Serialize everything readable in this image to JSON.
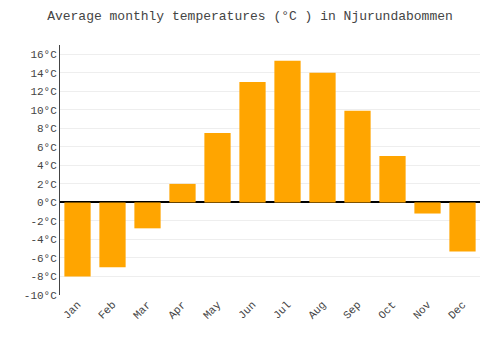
{
  "chart_data": {
    "type": "bar",
    "title": "Average monthly temperatures (°C ) in Njurundabommen",
    "categories": [
      "Jan",
      "Feb",
      "Mar",
      "Apr",
      "May",
      "Jun",
      "Jul",
      "Aug",
      "Sep",
      "Oct",
      "Nov",
      "Dec"
    ],
    "values": [
      -8.0,
      -7.0,
      -2.8,
      2.0,
      7.5,
      13.0,
      15.3,
      14.0,
      9.9,
      5.0,
      -1.2,
      -5.3
    ],
    "color": "#FFA500",
    "ylim": [
      -10,
      17
    ],
    "yticks": [
      {
        "value": -10,
        "label": "-10°C"
      },
      {
        "value": -8,
        "label": "-8°C"
      },
      {
        "value": -6,
        "label": "-6°C"
      },
      {
        "value": -4,
        "label": "-4°C"
      },
      {
        "value": -2,
        "label": "-2°C"
      },
      {
        "value": 0,
        "label": "0°C"
      },
      {
        "value": 2,
        "label": "2°C"
      },
      {
        "value": 4,
        "label": "4°C"
      },
      {
        "value": 6,
        "label": "6°C"
      },
      {
        "value": 8,
        "label": "8°C"
      },
      {
        "value": 10,
        "label": "10°C"
      },
      {
        "value": 12,
        "label": "12°C"
      },
      {
        "value": 14,
        "label": "14°C"
      },
      {
        "value": 16,
        "label": "16°C"
      }
    ],
    "grid": true
  }
}
